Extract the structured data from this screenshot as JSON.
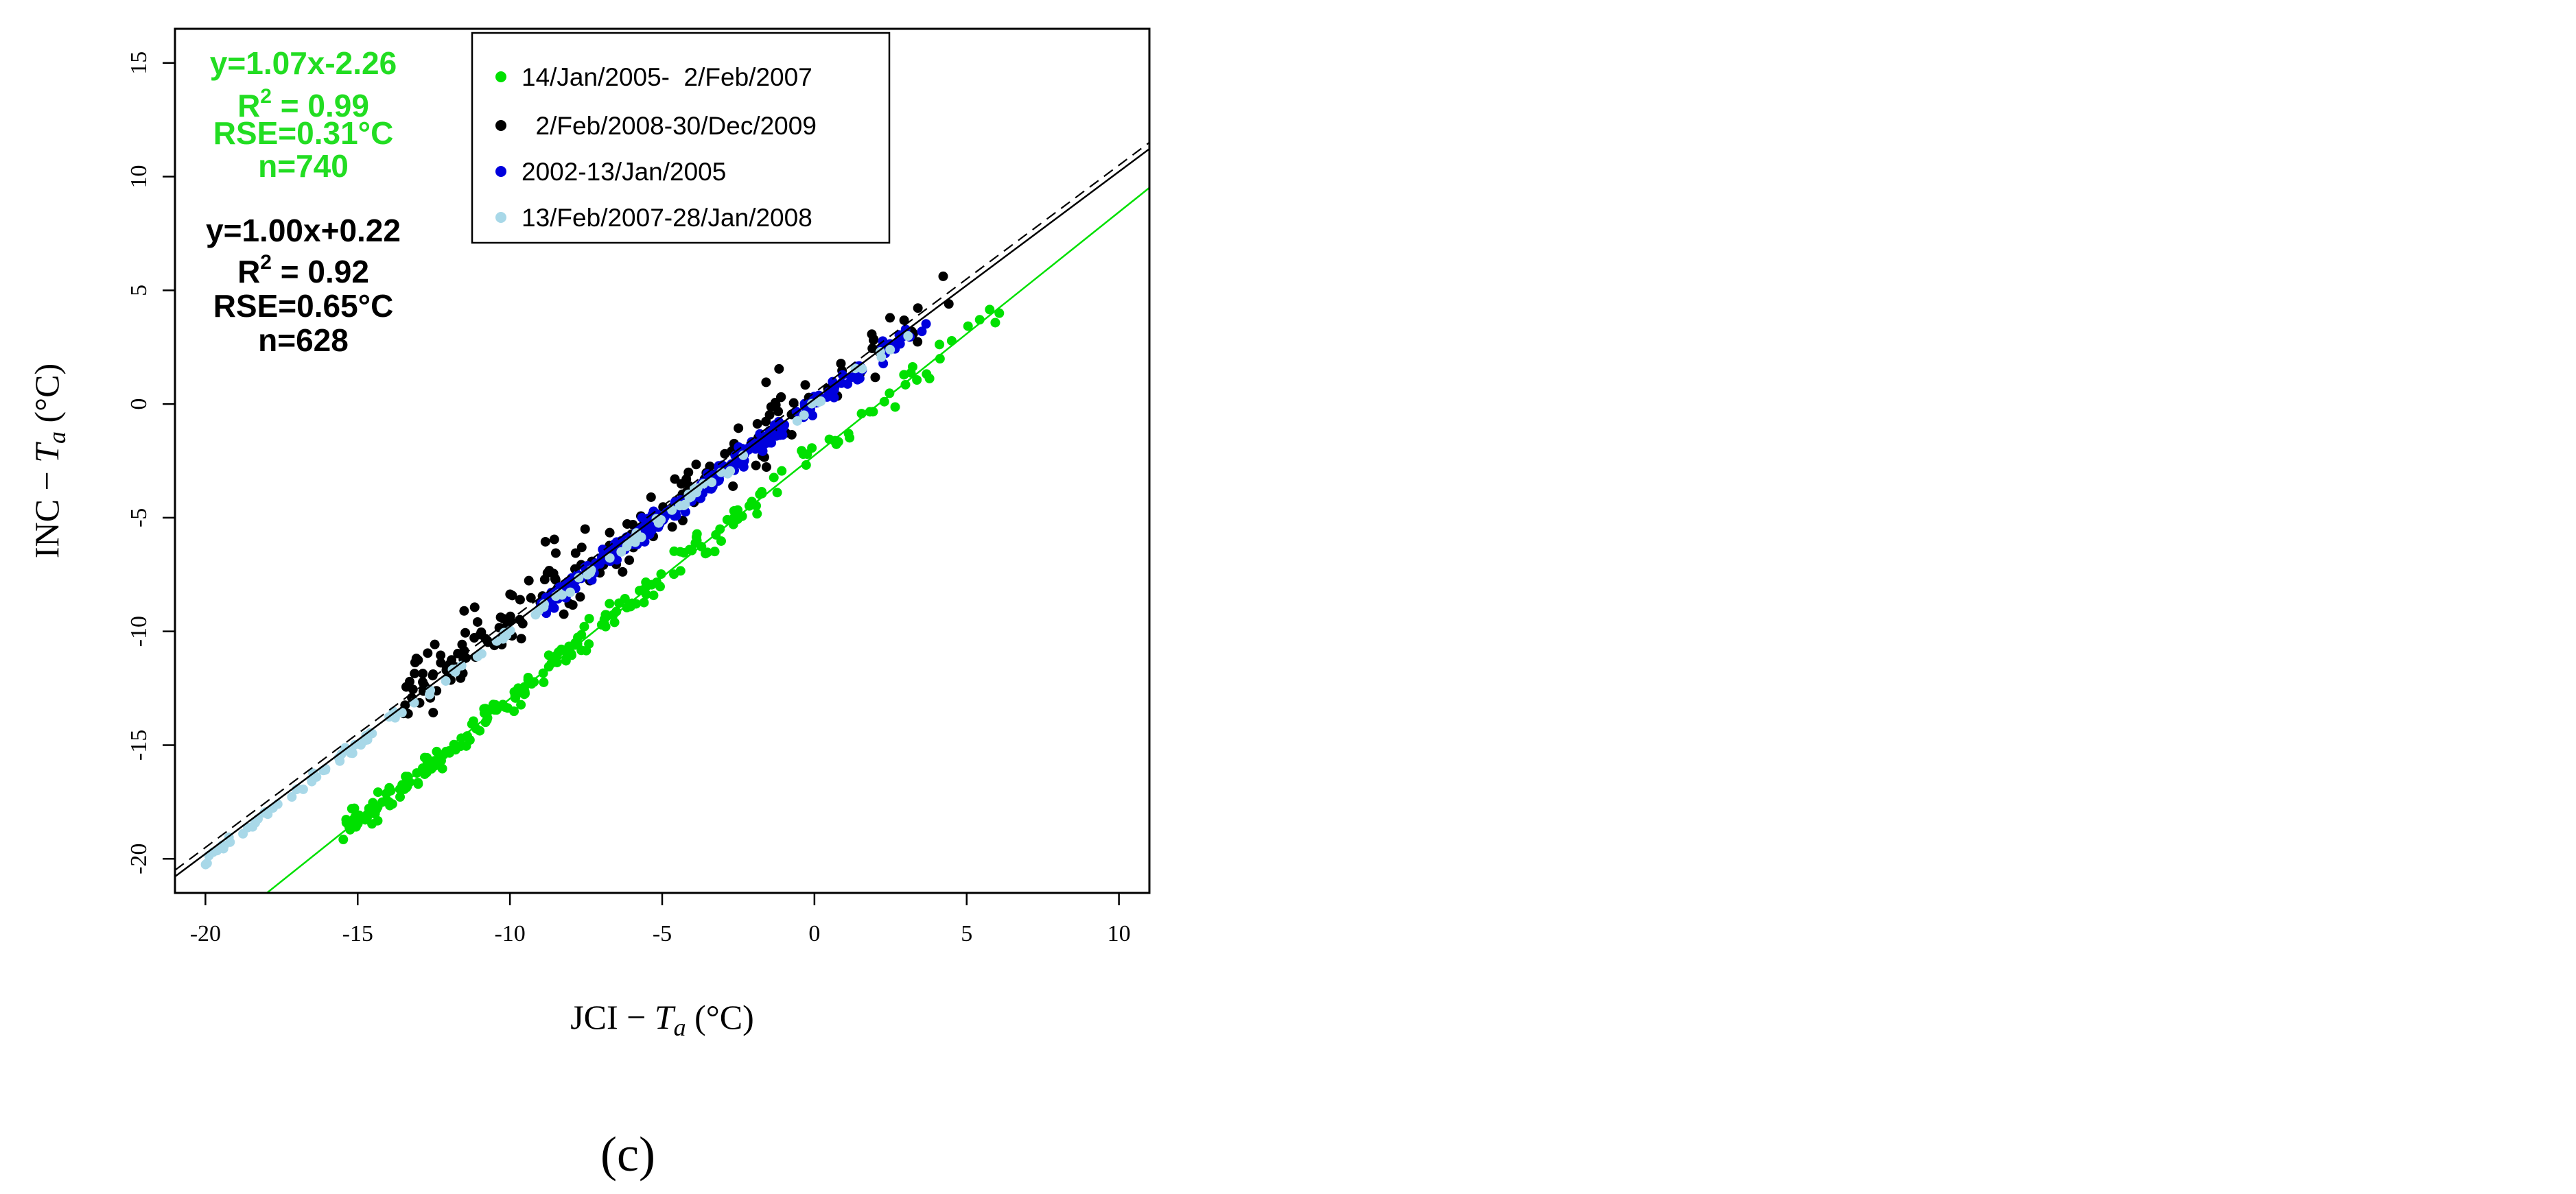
{
  "chart_data": {
    "type": "scatter",
    "xlabel": "JCI − T_a (°C)",
    "ylabel": "INC − T_a (°C)",
    "xlabel_prefix": "JCI − ",
    "xlabel_var": "T",
    "xlabel_sub": "a",
    "xlabel_unit": " (°C)",
    "ylabel_prefix": "INC − ",
    "ylabel_var": "T",
    "ylabel_sub": "a",
    "ylabel_unit": " (°C)",
    "xlim": [
      -21,
      11
    ],
    "ylim": [
      -21.5,
      16.5
    ],
    "x_ticks": [
      -20,
      -15,
      -10,
      -5,
      0,
      5,
      10
    ],
    "y_ticks": [
      -20,
      -15,
      -10,
      -5,
      0,
      5,
      10,
      15
    ],
    "x_tick_labels": [
      "-20",
      "-15",
      "-10",
      "-5",
      "0",
      "5",
      "10"
    ],
    "y_tick_labels": [
      "-20",
      "-15",
      "-10",
      "-5",
      "0",
      "5",
      "10",
      "15"
    ],
    "legend_position": "top",
    "grid": false,
    "series": [
      {
        "name": "14/Jan/2005-  2/Feb/2007",
        "color": "#00e000",
        "slope": 1.07,
        "intercept": -2.26,
        "x_range": [
          -15.5,
          6.6
        ],
        "noise": 0.45,
        "count": 240
      },
      {
        "name": "  2/Feb/2008-30/Dec/2009",
        "color": "#000000",
        "slope": 1.0,
        "intercept": 0.22,
        "x_range": [
          -13.5,
          4.8
        ],
        "noise": 0.9,
        "count": 200
      },
      {
        "name": "2002-13/Jan/2005",
        "color": "#0000dd",
        "slope": 1.0,
        "intercept": 0.0,
        "x_range": [
          -9.0,
          4.7
        ],
        "noise": 0.35,
        "count": 260
      },
      {
        "name": "13/Feb/2007-28/Jan/2008",
        "color": "#a8d8e8",
        "slope": 1.0,
        "intercept": 0.0,
        "x_range": [
          -20.0,
          4.0
        ],
        "noise": 0.15,
        "count": 120
      }
    ],
    "fit_lines": [
      {
        "name": "green fit",
        "color": "#00e000",
        "slope": 1.07,
        "intercept": -2.26,
        "dash": false
      },
      {
        "name": "black fit",
        "color": "#000000",
        "slope": 1.0,
        "intercept": 0.22,
        "dash": false
      },
      {
        "name": "reference",
        "color": "#000000",
        "slope": 1.0,
        "intercept": 0.5,
        "dash": true
      }
    ],
    "annotations": {
      "green": {
        "color": "#22dd22",
        "eq": "y=1.07x-2.26",
        "r2_prefix": "R",
        "r2_sup": "2",
        "r2_value": " = 0.99",
        "rse": "RSE=0.31°C",
        "n": "n=740"
      },
      "black": {
        "color": "#000000",
        "eq": "y=1.00x+0.22",
        "r2_prefix": "R",
        "r2_sup": "2",
        "r2_value": " = 0.92",
        "rse": "RSE=0.65°C",
        "n": "n=628"
      }
    }
  },
  "caption": "(c)"
}
